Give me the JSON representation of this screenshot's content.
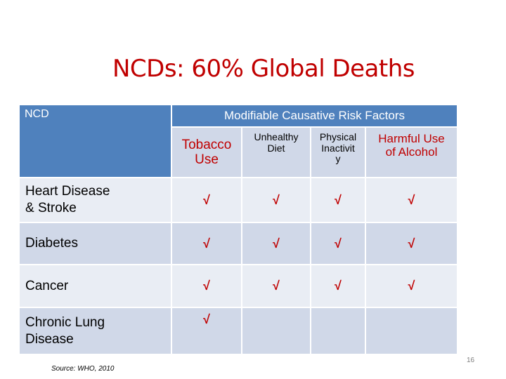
{
  "title": "NCDs: 60% Global Deaths",
  "table": {
    "ncd_header": "NCD",
    "risk_header": "Modifiable Causative Risk Factors",
    "risk_factors": [
      {
        "label": "Tobacco\nUse"
      },
      {
        "label": "Unhealthy\nDiet"
      },
      {
        "label": "Physical\nInactivit\ny"
      },
      {
        "label": "Harmful Use\nof Alcohol"
      }
    ],
    "rows": [
      {
        "label": "Heart Disease\n& Stroke",
        "checks": [
          "√",
          "√",
          "√",
          "√"
        ]
      },
      {
        "label": "Diabetes",
        "checks": [
          "√",
          "√",
          "√",
          "√"
        ]
      },
      {
        "label": "Cancer",
        "checks": [
          "√",
          "√",
          "√",
          "√"
        ]
      },
      {
        "label": "Chronic Lung\nDisease",
        "checks": [
          "√",
          "",
          "",
          ""
        ]
      }
    ]
  },
  "colors": {
    "header_blue": "#4f81bd",
    "title_red": "#c00000"
  },
  "source": "Source: WHO, 2010",
  "page_number": "16"
}
